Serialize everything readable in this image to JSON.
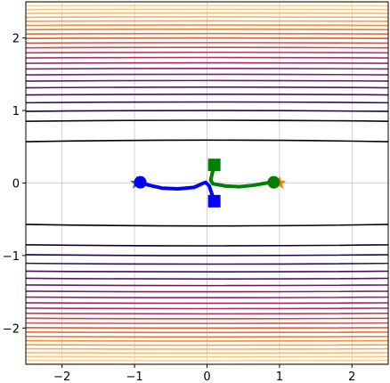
{
  "chart_data": {
    "type": "contour",
    "title": "",
    "xlabel": "",
    "ylabel": "",
    "xlim": [
      -2.5,
      2.5
    ],
    "ylim": [
      -2.5,
      2.5
    ],
    "grid": true,
    "x_ticks": [
      -2,
      -1,
      0,
      1,
      2
    ],
    "y_ticks": [
      -2,
      -1,
      0,
      1,
      2
    ],
    "x_tick_labels": [
      "−2",
      "−1",
      "0",
      "1",
      "2"
    ],
    "y_tick_labels": [
      "−2",
      "−1",
      "0",
      "1",
      "2"
    ],
    "contour": {
      "function": "f(x,y) = x^2 / 256 + y^2",
      "levels": [
        0.35,
        0.75,
        1.0,
        1.25,
        1.5,
        1.75,
        2.0,
        2.25,
        2.5,
        2.75,
        3.0,
        3.25,
        3.5,
        3.75,
        4.0,
        4.25,
        4.5,
        4.75,
        5.0,
        5.25,
        5.5,
        5.75,
        6.0,
        6.25
      ],
      "colormap": [
        "#000004",
        "#2c0b4f",
        "#5a1268",
        "#87216b",
        "#b32f5b",
        "#d84b43",
        "#f1702a",
        "#f89c45",
        "#fbbf79",
        "#fcd9a8"
      ]
    },
    "series": [
      {
        "color": "#0000ff",
        "points": [
          [
            -0.92,
            0.01
          ],
          [
            -0.8,
            -0.03
          ],
          [
            -0.62,
            -0.07
          ],
          [
            -0.4,
            -0.08
          ],
          [
            -0.18,
            -0.06
          ],
          [
            -0.07,
            -0.01
          ],
          [
            -0.02,
            0.01
          ],
          [
            0.03,
            -0.04
          ],
          [
            0.1,
            -0.25
          ]
        ],
        "start_marker": {
          "shape": "circle",
          "x": -0.92,
          "y": 0.01
        },
        "end_marker": {
          "shape": "square",
          "x": 0.1,
          "y": -0.25
        },
        "origin_marker": {
          "shape": "star",
          "x": -0.97,
          "y": 0.0,
          "color": "#1f77b4"
        }
      },
      {
        "color": "#008000",
        "points": [
          [
            0.92,
            0.01
          ],
          [
            0.82,
            0.0
          ],
          [
            0.65,
            -0.03
          ],
          [
            0.45,
            -0.05
          ],
          [
            0.25,
            -0.04
          ],
          [
            0.08,
            -0.01
          ],
          [
            0.05,
            0.04
          ],
          [
            0.1,
            0.25
          ]
        ],
        "start_marker": {
          "shape": "circle",
          "x": 0.92,
          "y": 0.01
        },
        "end_marker": {
          "shape": "square",
          "x": 0.1,
          "y": 0.25
        },
        "origin_marker": {
          "shape": "star",
          "x": 1.0,
          "y": 0.0,
          "color": "#ff7f0e"
        }
      }
    ]
  }
}
